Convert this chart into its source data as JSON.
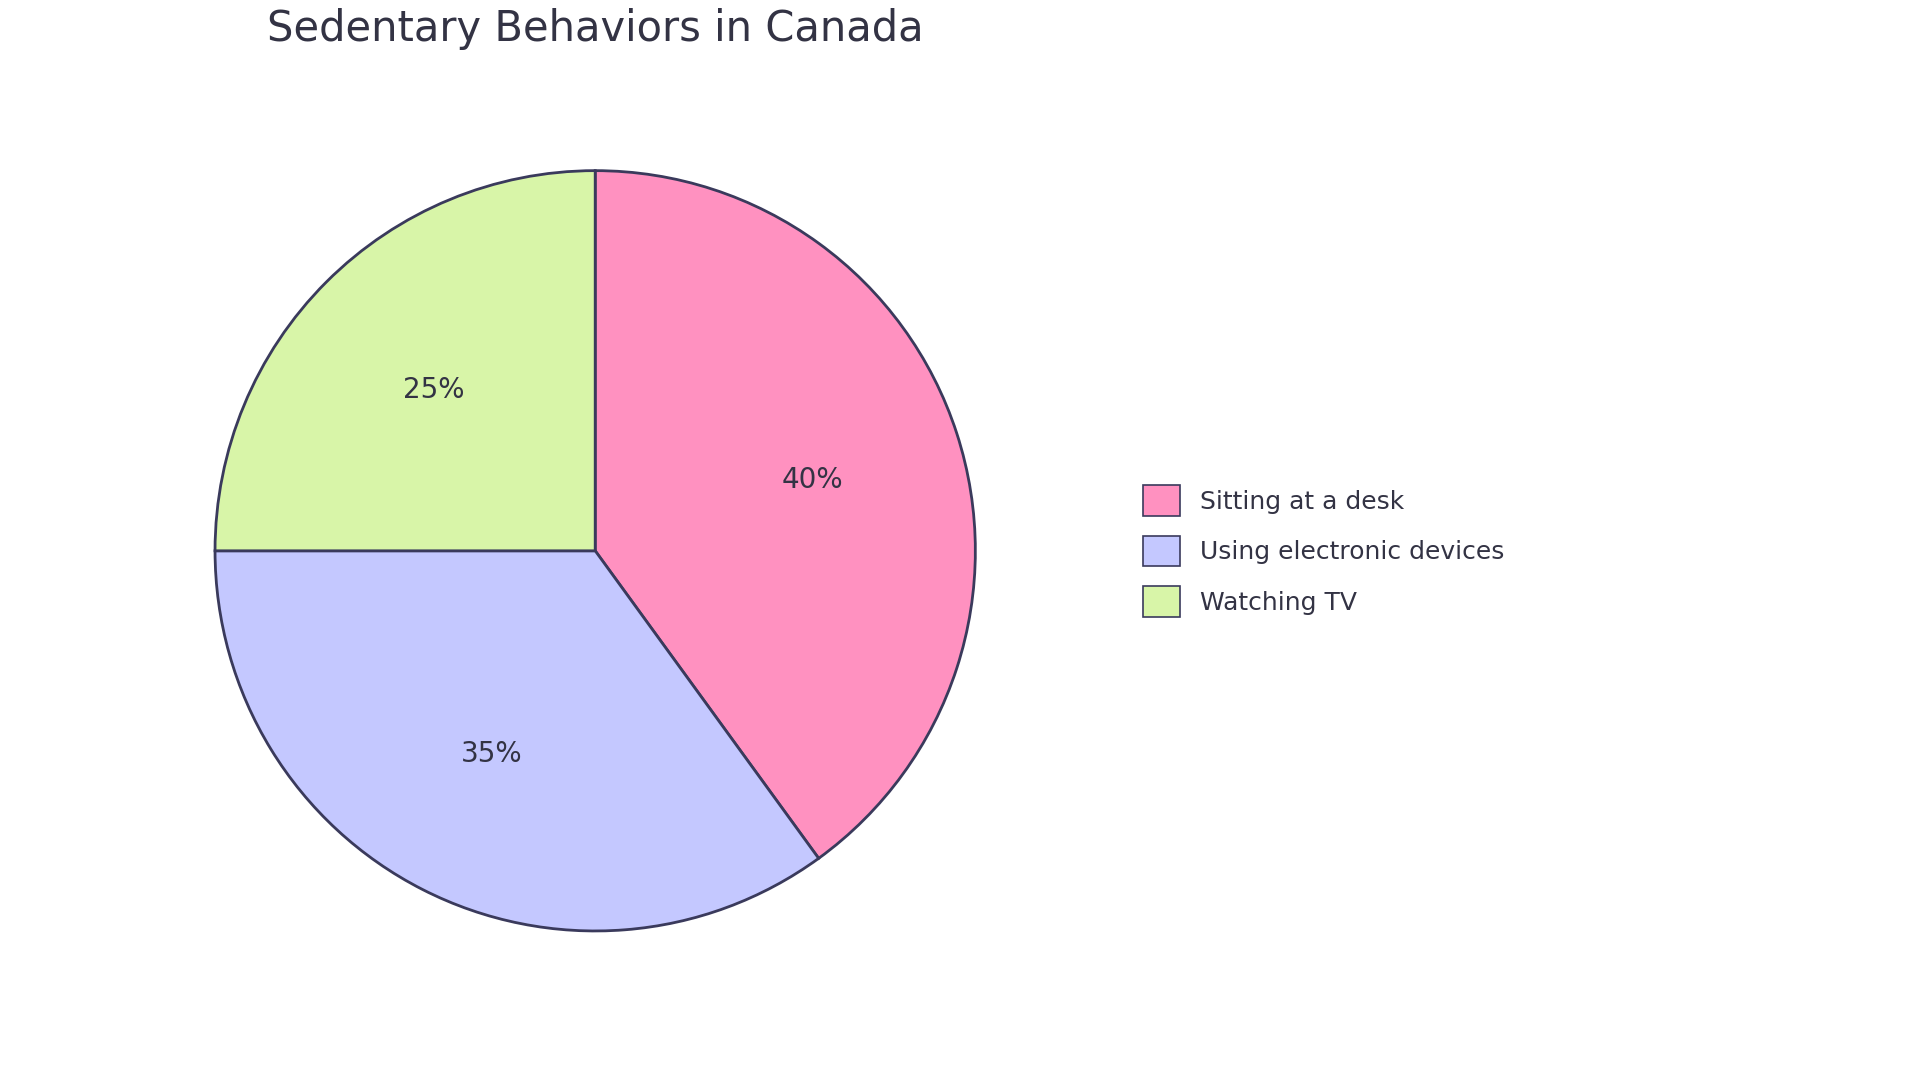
{
  "title": "Sedentary Behaviors in Canada",
  "labels": [
    "Sitting at a desk",
    "Using electronic devices",
    "Watching TV"
  ],
  "values": [
    40,
    35,
    25
  ],
  "colors": [
    "#FF91C0",
    "#C4C8FF",
    "#D8F5A8"
  ],
  "edge_color": "#3A3A5C",
  "edge_width": 2.0,
  "title_fontsize": 30,
  "autopct_fontsize": 20,
  "legend_fontsize": 18,
  "background_color": "#FFFFFF",
  "start_angle": 90,
  "text_color": "#333344"
}
